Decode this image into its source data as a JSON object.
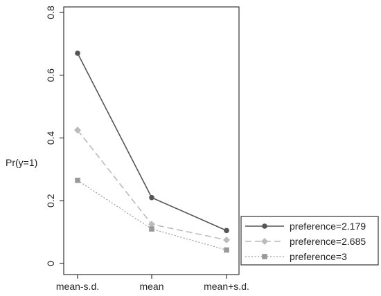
{
  "chart_data": {
    "type": "line",
    "categories": [
      "mean-s.d.",
      "mean",
      "mean+s.d."
    ],
    "ylabel": "Pr(y=1)",
    "ylim": [
      0,
      0.8
    ],
    "yticks": [
      "0",
      "0.2",
      "0.4",
      "0.6",
      "0.8"
    ],
    "grid": false,
    "legend_position": "bottom-right",
    "series": [
      {
        "name": "preference=2.179",
        "values": [
          0.67,
          0.21,
          0.105
        ],
        "color": "#555555",
        "line_style": "solid",
        "marker": "circle"
      },
      {
        "name": "preference=2.685",
        "values": [
          0.425,
          0.125,
          0.075
        ],
        "color": "#bbbbbb",
        "line_style": "dashed",
        "marker": "diamond"
      },
      {
        "name": "preference=3",
        "values": [
          0.265,
          0.11,
          0.043
        ],
        "color": "#999999",
        "line_style": "dotted",
        "marker": "square"
      }
    ]
  }
}
